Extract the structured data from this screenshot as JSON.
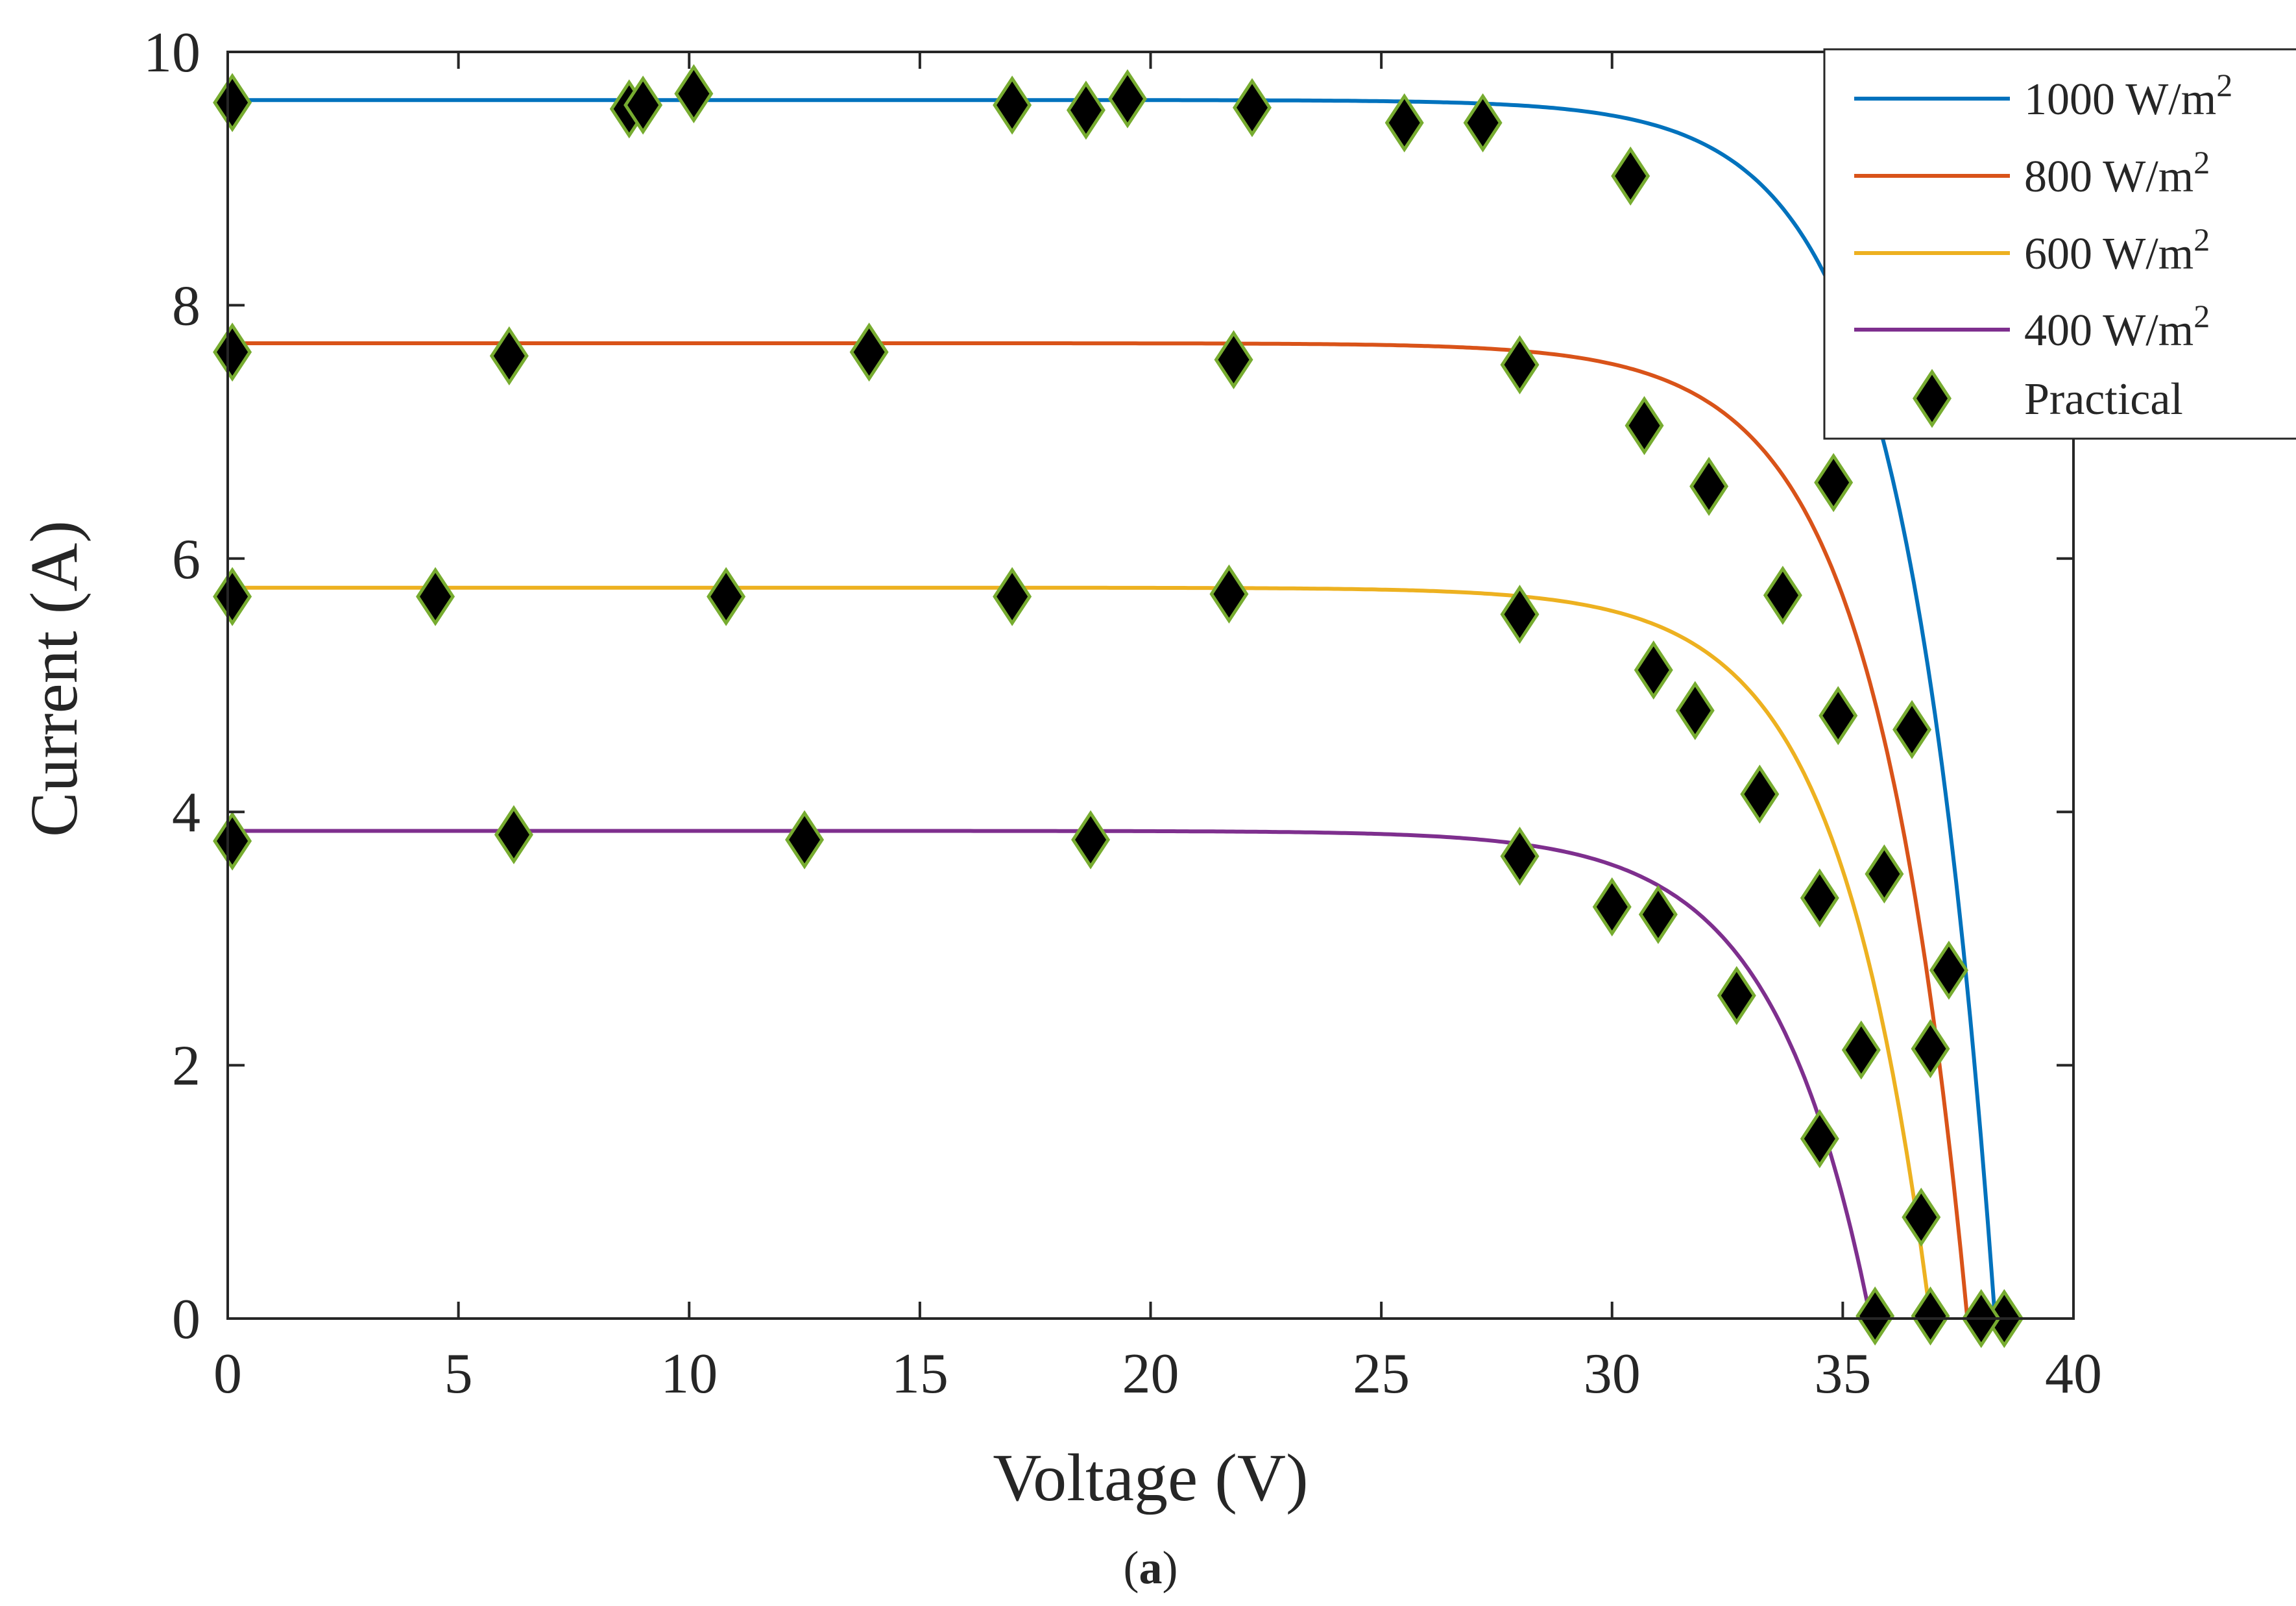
{
  "chart_data": {
    "type": "line",
    "caption": "(a)",
    "caption_letter": "a",
    "xlabel": "Voltage (V)",
    "ylabel": "Current (A)",
    "xlim": [
      0,
      40
    ],
    "ylim": [
      0,
      10
    ],
    "x_ticks": [
      0,
      5,
      10,
      15,
      20,
      25,
      30,
      35,
      40
    ],
    "y_ticks": [
      0,
      2,
      4,
      6,
      8,
      10
    ],
    "grid": false,
    "legend_position": "top-right",
    "series": [
      {
        "name": "1000 W/m2",
        "label_base": "1000 W/m",
        "label_sup": "2",
        "color": "#0072BD",
        "isc": 9.62,
        "voc": 38.3,
        "knee_voltage_scale": 1.9
      },
      {
        "name": "800 W/m2",
        "label_base": "800 W/m",
        "label_sup": "2",
        "color": "#D95319",
        "isc": 7.7,
        "voc": 37.7,
        "knee_voltage_scale": 2.0
      },
      {
        "name": "600 W/m2",
        "label_base": "600 W/m",
        "label_sup": "2",
        "color": "#EDB120",
        "isc": 5.77,
        "voc": 36.9,
        "knee_voltage_scale": 2.0
      },
      {
        "name": "400 W/m2",
        "label_base": "400 W/m",
        "label_sup": "2",
        "color": "#7E2F8E",
        "isc": 3.85,
        "voc": 35.6,
        "knee_voltage_scale": 2.1
      }
    ],
    "practical": {
      "name": "Practical",
      "marker": "diamond",
      "fill": "#000000",
      "edge": "#77AC30",
      "points": [
        {
          "x": 0.1,
          "y": 9.6
        },
        {
          "x": 8.7,
          "y": 9.55
        },
        {
          "x": 9.0,
          "y": 9.58
        },
        {
          "x": 10.1,
          "y": 9.67
        },
        {
          "x": 17.0,
          "y": 9.58
        },
        {
          "x": 18.6,
          "y": 9.54
        },
        {
          "x": 19.5,
          "y": 9.63
        },
        {
          "x": 22.2,
          "y": 9.56
        },
        {
          "x": 25.5,
          "y": 9.44
        },
        {
          "x": 27.2,
          "y": 9.44
        },
        {
          "x": 30.4,
          "y": 9.02
        },
        {
          "x": 34.8,
          "y": 6.6
        },
        {
          "x": 36.5,
          "y": 4.65
        },
        {
          "x": 37.3,
          "y": 2.75
        },
        {
          "x": 38.5,
          "y": 0.0
        },
        {
          "x": 0.1,
          "y": 7.63
        },
        {
          "x": 6.1,
          "y": 7.6
        },
        {
          "x": 13.9,
          "y": 7.63
        },
        {
          "x": 21.8,
          "y": 7.57
        },
        {
          "x": 28.0,
          "y": 7.53
        },
        {
          "x": 30.7,
          "y": 7.05
        },
        {
          "x": 32.1,
          "y": 6.57
        },
        {
          "x": 33.7,
          "y": 5.71
        },
        {
          "x": 34.9,
          "y": 4.76
        },
        {
          "x": 35.9,
          "y": 3.51
        },
        {
          "x": 36.9,
          "y": 2.13
        },
        {
          "x": 38.0,
          "y": 0.0
        },
        {
          "x": 0.1,
          "y": 5.7
        },
        {
          "x": 4.5,
          "y": 5.7
        },
        {
          "x": 10.8,
          "y": 5.7
        },
        {
          "x": 17.0,
          "y": 5.7
        },
        {
          "x": 21.7,
          "y": 5.72
        },
        {
          "x": 28.0,
          "y": 5.56
        },
        {
          "x": 30.9,
          "y": 5.12
        },
        {
          "x": 31.8,
          "y": 4.8
        },
        {
          "x": 33.2,
          "y": 4.14
        },
        {
          "x": 34.5,
          "y": 3.32
        },
        {
          "x": 35.4,
          "y": 2.12
        },
        {
          "x": 36.7,
          "y": 0.8
        },
        {
          "x": 36.9,
          "y": 0.02
        },
        {
          "x": 0.1,
          "y": 3.77
        },
        {
          "x": 6.2,
          "y": 3.82
        },
        {
          "x": 12.5,
          "y": 3.78
        },
        {
          "x": 18.7,
          "y": 3.78
        },
        {
          "x": 28.0,
          "y": 3.65
        },
        {
          "x": 30.0,
          "y": 3.25
        },
        {
          "x": 31.0,
          "y": 3.19
        },
        {
          "x": 32.7,
          "y": 2.55
        },
        {
          "x": 34.5,
          "y": 1.42
        },
        {
          "x": 35.7,
          "y": 0.02
        }
      ]
    }
  }
}
